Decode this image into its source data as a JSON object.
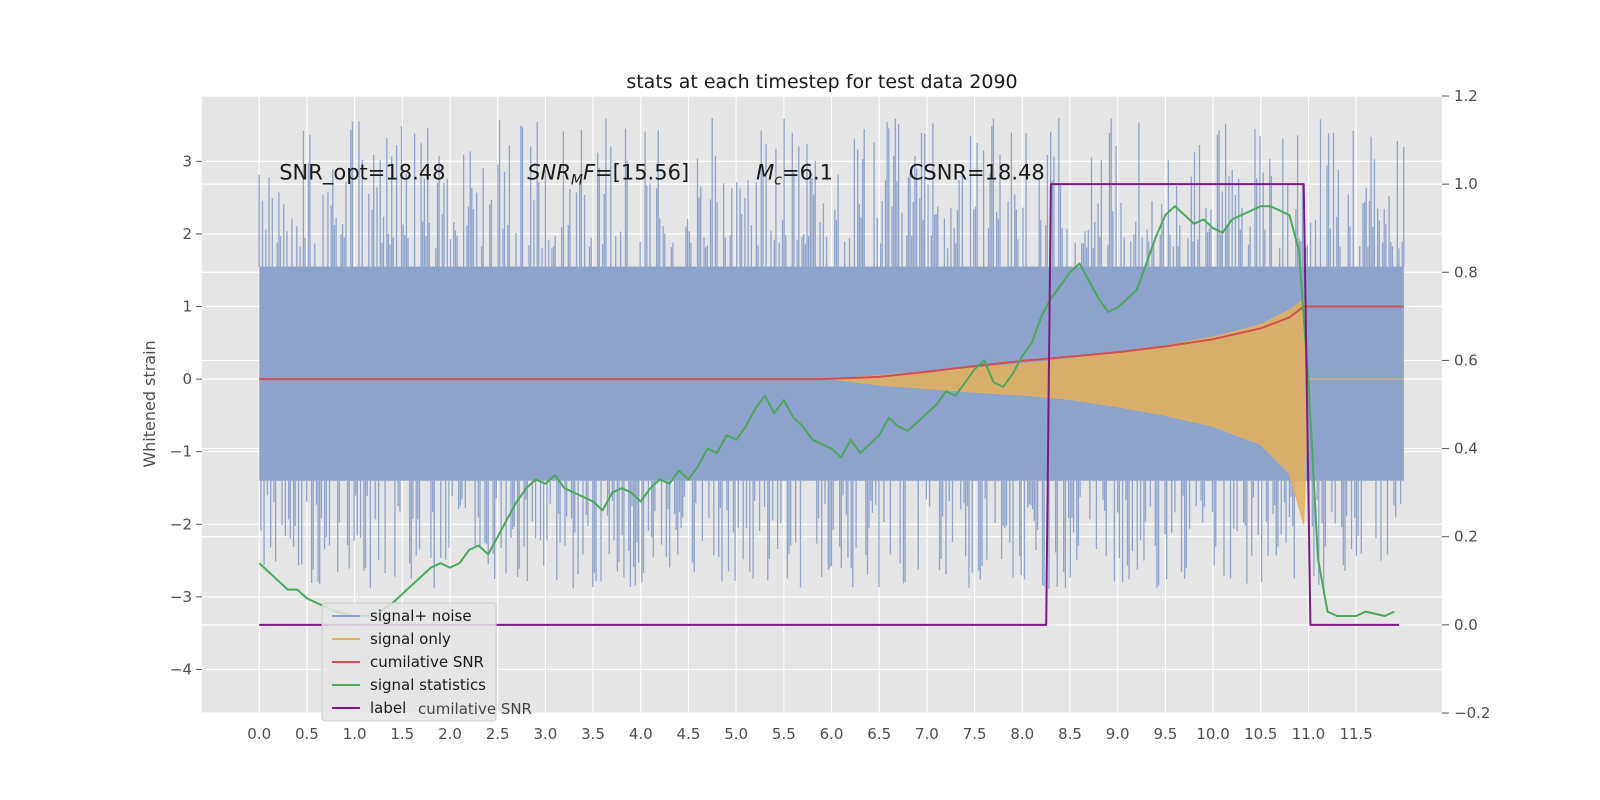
{
  "chart_data": {
    "type": "line",
    "title": "stats at each timestep for test data 2090",
    "ylabel": "Whitened strain",
    "xlabel": "",
    "xlim": [
      -0.6,
      12.4
    ],
    "ylim": [
      -4.6,
      3.9
    ],
    "y2lim": [
      -0.2,
      1.2
    ],
    "grid": true,
    "x_ticks": [
      "0.0",
      "0.5",
      "1.0",
      "1.5",
      "2.0",
      "2.5",
      "3.0",
      "3.5",
      "4.0",
      "4.5",
      "5.0",
      "5.5",
      "6.0",
      "6.5",
      "7.0",
      "7.5",
      "8.0",
      "8.5",
      "9.0",
      "9.5",
      "10.0",
      "10.5",
      "11.0",
      "11.5"
    ],
    "y_ticks": [
      "3",
      "2",
      "1",
      "0",
      "−1",
      "−2",
      "−3",
      "−4"
    ],
    "y2_ticks": [
      "1.2",
      "1.0",
      "0.8",
      "0.6",
      "0.4",
      "0.2",
      "0.0",
      "−0.2"
    ],
    "annotations": [
      {
        "pre": "SNR_opt=18.48",
        "sub": "",
        "post": "",
        "italic": false
      },
      {
        "pre": "SNR",
        "sub": "M",
        "post": "F=[15.56]",
        "italic": true
      },
      {
        "pre": "M",
        "sub": "c",
        "post": "=6.1",
        "italic": true
      },
      {
        "pre": "CSNR=18.48",
        "sub": "",
        "post": "",
        "italic": false
      }
    ],
    "legend": {
      "placement": "lower-left",
      "entries": [
        "signal+ noise",
        "signal only",
        "cumilative SNR",
        "signal statistics",
        "label"
      ],
      "ghost_text": "cumilative SNR"
    },
    "colors": {
      "noise": "#8ea3cb",
      "signal": "#e4b15a",
      "cumulative": "#d1504f",
      "statistics": "#4aa85a",
      "label": "#7b1a85",
      "background": "#e5e5e5",
      "grid": "#ffffff"
    },
    "noise": {
      "x_range": [
        0.0,
        12.0
      ],
      "envelope": [
        -2.9,
        3.6
      ],
      "core": [
        -1.4,
        1.55
      ]
    },
    "series": [
      {
        "name": "signal only",
        "axis": "left",
        "x": [
          6.0,
          6.5,
          7.0,
          7.5,
          8.0,
          8.5,
          9.0,
          9.5,
          10.0,
          10.5,
          10.8,
          10.95,
          11.0,
          12.0
        ],
        "upper": [
          0.0,
          0.05,
          0.1,
          0.15,
          0.21,
          0.28,
          0.36,
          0.46,
          0.58,
          0.75,
          0.95,
          1.1,
          0.0,
          0.0
        ],
        "lower": [
          0.0,
          -0.08,
          -0.13,
          -0.18,
          -0.22,
          -0.28,
          -0.38,
          -0.5,
          -0.65,
          -0.9,
          -1.3,
          -2.0,
          0.0,
          0.0
        ]
      },
      {
        "name": "cumilative SNR",
        "axis": "left",
        "x": [
          0.0,
          5.9,
          6.5,
          7.0,
          7.5,
          8.0,
          8.5,
          9.0,
          9.5,
          10.0,
          10.5,
          10.8,
          10.95,
          11.0,
          12.0
        ],
        "y": [
          0.0,
          0.0,
          0.03,
          0.1,
          0.18,
          0.25,
          0.31,
          0.37,
          0.45,
          0.55,
          0.7,
          0.85,
          1.0,
          1.0,
          1.0
        ]
      },
      {
        "name": "signal statistics",
        "axis": "right",
        "x": [
          0.0,
          0.1,
          0.2,
          0.3,
          0.4,
          0.5,
          0.6,
          0.7,
          0.8,
          1.0,
          1.2,
          1.4,
          1.5,
          1.6,
          1.8,
          1.9,
          2.0,
          2.1,
          2.2,
          2.3,
          2.4,
          2.5,
          2.6,
          2.7,
          2.8,
          2.9,
          3.0,
          3.1,
          3.2,
          3.3,
          3.5,
          3.6,
          3.7,
          3.8,
          3.9,
          4.0,
          4.1,
          4.2,
          4.3,
          4.4,
          4.5,
          4.6,
          4.7,
          4.8,
          4.9,
          5.0,
          5.1,
          5.2,
          5.3,
          5.4,
          5.5,
          5.6,
          5.7,
          5.8,
          5.9,
          6.0,
          6.1,
          6.2,
          6.3,
          6.4,
          6.5,
          6.6,
          6.7,
          6.8,
          6.9,
          7.0,
          7.1,
          7.2,
          7.3,
          7.4,
          7.5,
          7.6,
          7.7,
          7.8,
          7.9,
          8.0,
          8.1,
          8.2,
          8.3,
          8.4,
          8.5,
          8.6,
          8.7,
          8.8,
          8.9,
          9.0,
          9.1,
          9.2,
          9.3,
          9.4,
          9.5,
          9.6,
          9.7,
          9.8,
          9.9,
          10.0,
          10.1,
          10.2,
          10.3,
          10.4,
          10.5,
          10.6,
          10.7,
          10.8,
          10.9,
          11.0,
          11.1,
          11.2,
          11.3,
          11.5,
          11.6,
          11.8,
          11.9
        ],
        "y": [
          0.14,
          0.12,
          0.1,
          0.08,
          0.08,
          0.06,
          0.05,
          0.04,
          0.03,
          0.02,
          0.02,
          0.05,
          0.07,
          0.09,
          0.13,
          0.14,
          0.13,
          0.14,
          0.17,
          0.18,
          0.16,
          0.2,
          0.24,
          0.28,
          0.31,
          0.33,
          0.32,
          0.34,
          0.31,
          0.3,
          0.28,
          0.26,
          0.3,
          0.31,
          0.3,
          0.28,
          0.31,
          0.33,
          0.32,
          0.35,
          0.33,
          0.36,
          0.4,
          0.39,
          0.43,
          0.42,
          0.45,
          0.49,
          0.52,
          0.48,
          0.51,
          0.47,
          0.45,
          0.42,
          0.41,
          0.4,
          0.38,
          0.42,
          0.39,
          0.41,
          0.43,
          0.47,
          0.45,
          0.44,
          0.46,
          0.48,
          0.5,
          0.53,
          0.52,
          0.55,
          0.58,
          0.6,
          0.55,
          0.54,
          0.57,
          0.61,
          0.64,
          0.7,
          0.74,
          0.77,
          0.8,
          0.82,
          0.78,
          0.74,
          0.71,
          0.72,
          0.74,
          0.76,
          0.82,
          0.88,
          0.93,
          0.95,
          0.93,
          0.91,
          0.92,
          0.9,
          0.89,
          0.92,
          0.93,
          0.94,
          0.95,
          0.95,
          0.94,
          0.93,
          0.85,
          0.55,
          0.15,
          0.03,
          0.02,
          0.02,
          0.03,
          0.02,
          0.03
        ]
      },
      {
        "name": "label",
        "axis": "right",
        "x": [
          0.0,
          8.25,
          8.3,
          10.95,
          11.02,
          11.95
        ],
        "y": [
          0.0,
          0.0,
          1.0,
          1.0,
          0.0,
          0.0
        ]
      }
    ]
  }
}
